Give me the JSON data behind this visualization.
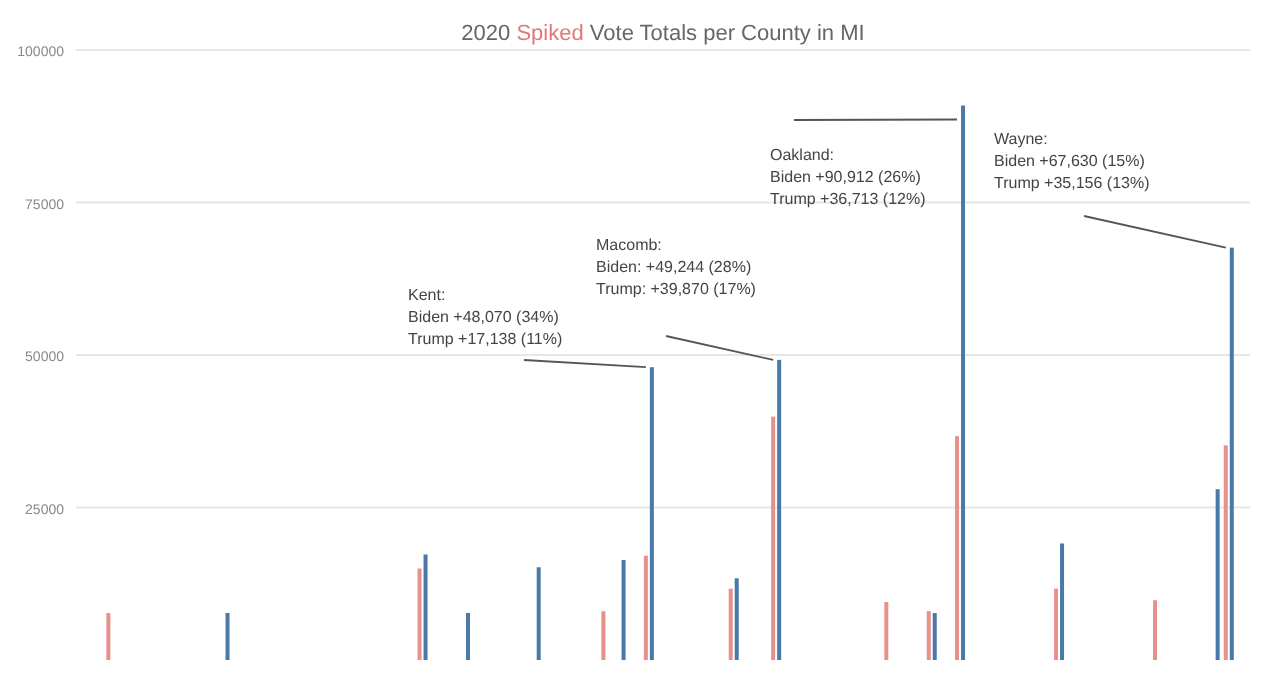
{
  "chart_data": {
    "type": "bar",
    "title": "2020 Spiked Vote Totals per County in MI",
    "categories": [
      null,
      null,
      null,
      null,
      null,
      null,
      null,
      null,
      null,
      null,
      null,
      null,
      null,
      null,
      null,
      null,
      null,
      null,
      null,
      null,
      null,
      null,
      null,
      null,
      null,
      null,
      null,
      null,
      null,
      null,
      null,
      null,
      null,
      null,
      null,
      null,
      null,
      null,
      null,
      null,
      null,
      null,
      null,
      null,
      null,
      null,
      null,
      null,
      null,
      null,
      null,
      null,
      null,
      null,
      null,
      null,
      null,
      null,
      null,
      null,
      null,
      null,
      null,
      null,
      null,
      null,
      null,
      null,
      null,
      null,
      null,
      null,
      null,
      null,
      null,
      null,
      null,
      null,
      null,
      null,
      null,
      null,
      null
    ],
    "series": [
      {
        "color": "#e8908a",
        "values": [
          null,
          null,
          7700,
          null,
          null,
          null,
          null,
          null,
          null,
          null,
          null,
          null,
          null,
          null,
          null,
          null,
          null,
          null,
          null,
          null,
          null,
          null,
          null,
          null,
          15000,
          null,
          null,
          null,
          null,
          null,
          null,
          null,
          null,
          null,
          null,
          null,
          null,
          8000,
          null,
          null,
          17100,
          null,
          null,
          null,
          null,
          null,
          11700,
          null,
          null,
          39900,
          null,
          null,
          null,
          null,
          null,
          null,
          null,
          9500,
          null,
          null,
          8000,
          null,
          36700,
          null,
          null,
          null,
          null,
          null,
          null,
          11700,
          null,
          null,
          null,
          null,
          null,
          null,
          9800,
          null,
          null,
          null,
          null,
          35200,
          null
        ]
      },
      {
        "color": "#4a78a8",
        "values": [
          null,
          null,
          null,
          null,
          null,
          null,
          null,
          null,
          null,
          null,
          7700,
          null,
          null,
          null,
          null,
          null,
          null,
          null,
          null,
          null,
          null,
          null,
          null,
          null,
          17300,
          null,
          null,
          7700,
          null,
          null,
          null,
          null,
          15200,
          null,
          null,
          null,
          null,
          null,
          16400,
          null,
          48000,
          null,
          null,
          null,
          null,
          null,
          13400,
          null,
          null,
          49200,
          null,
          null,
          null,
          null,
          null,
          null,
          null,
          null,
          null,
          null,
          7700,
          null,
          90900,
          null,
          null,
          null,
          null,
          null,
          null,
          19100,
          null,
          null,
          null,
          null,
          null,
          null,
          null,
          null,
          null,
          null,
          28000,
          67600,
          null
        ]
      }
    ],
    "ylim": [
      0,
      100000
    ],
    "yticks": [
      25000,
      50000,
      75000,
      100000
    ],
    "grid": "y",
    "annotations": [
      "Kent:\nBiden +48,070 (34%)\nTrump +17,138 (11%)",
      "Macomb:\nBiden: +49,244 (28%)\nTrump: +39,870 (17%)",
      "Oakland:\nBiden +90,912 (26%)\nTrump +36,713 (12%)",
      "Wayne:\nBiden +67,630 (15%)\nTrump +35,156 (13%)"
    ]
  }
}
